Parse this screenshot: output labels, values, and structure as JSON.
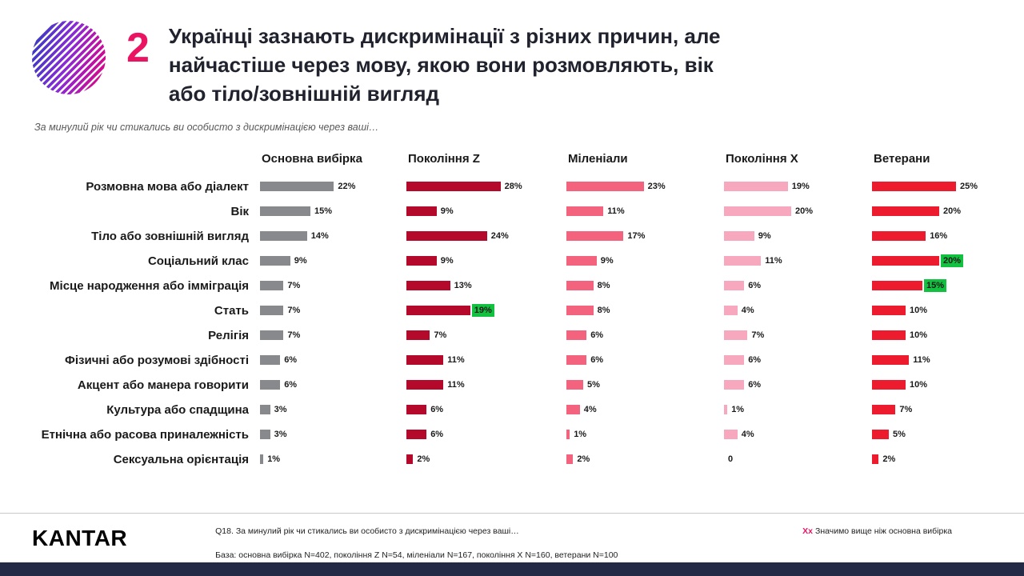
{
  "theme": {
    "accent_pink": "#EB1462",
    "title_color": "#20222E",
    "subtitle_gray": "#595959",
    "highlight_green": "#12C13F",
    "footer_bar_navy": "#222A45"
  },
  "header": {
    "slide_number": "2",
    "title": "Українці зазнають дискримінації з різних причин, але найчастіше через мову, якою вони розмовляють, вік або тіло/зовнішній вигляд"
  },
  "subtitle": "За минулий рік чи стикались ви особисто з дискримінацією через ваші…",
  "chart_data": {
    "type": "bar",
    "orientation": "horizontal",
    "unit": "%",
    "xlim": [
      0,
      30
    ],
    "categories": [
      "Розмовна мова або діалект",
      "Вік",
      "Тіло або зовнішній вигляд",
      "Соціальний клас",
      "Місце народження або імміграція",
      "Стать",
      "Релігія",
      "Фізичні або розумові здібності",
      "Акцент або манера говорити",
      "Культура або спадщина",
      "Етнічна або расова приналежність",
      "Сексуальна орієнтація"
    ],
    "series": [
      {
        "name": "Основна вибірка",
        "color": "#87898C",
        "values": [
          22,
          15,
          14,
          9,
          7,
          7,
          7,
          6,
          6,
          3,
          3,
          1
        ]
      },
      {
        "name": "Покоління Z",
        "color": "#B5092B",
        "values": [
          28,
          9,
          24,
          9,
          13,
          19,
          7,
          11,
          11,
          6,
          6,
          2
        ]
      },
      {
        "name": "Міленіали",
        "color": "#F4637D",
        "values": [
          23,
          11,
          17,
          9,
          8,
          8,
          6,
          6,
          5,
          4,
          1,
          2
        ]
      },
      {
        "name": "Покоління X",
        "color": "#F8A8BE",
        "values": [
          19,
          20,
          9,
          11,
          6,
          4,
          7,
          6,
          6,
          1,
          4,
          0
        ]
      },
      {
        "name": "Ветерани",
        "color": "#ED1B2E",
        "values": [
          25,
          20,
          16,
          20,
          15,
          10,
          10,
          11,
          10,
          7,
          5,
          2
        ]
      }
    ],
    "highlight_cells": [
      [
        1,
        5
      ],
      [
        4,
        3
      ],
      [
        4,
        4
      ]
    ],
    "highlight_meaning": "Значимо вище ніж основна вибірка",
    "zero_label": "0"
  },
  "footer": {
    "logo": "KANTAR",
    "note1": "Q18. За минулий рік чи стикались ви особисто з дискримінацією через ваші…",
    "note2": "База: основна вибірка N=402, покоління Z N=54, міленіали N=167, покоління X N=160, ветерани N=100",
    "legend_marker": "Xx",
    "legend_text": "Значимо вище ніж основна вибірка"
  }
}
